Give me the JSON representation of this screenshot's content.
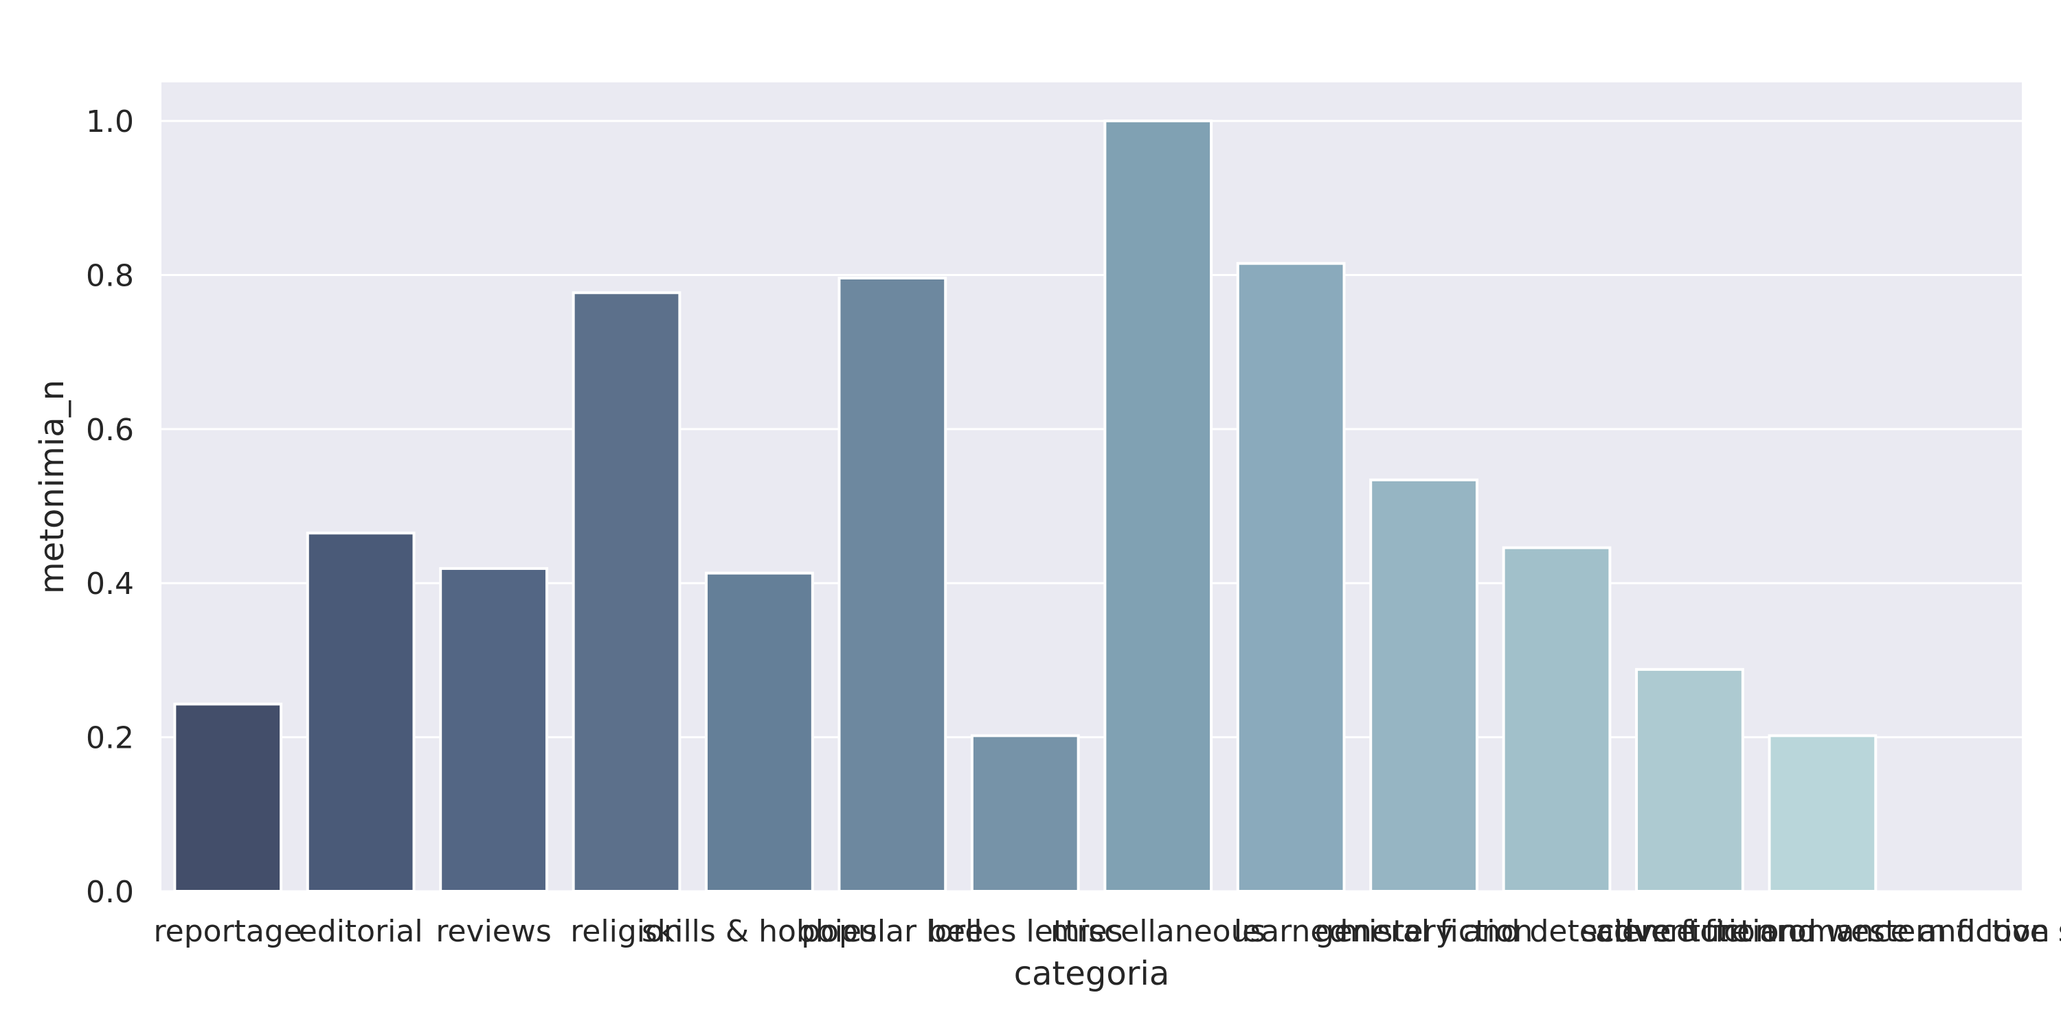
{
  "chart_data": {
    "type": "bar",
    "title": "",
    "xlabel": "categoria",
    "ylabel": "metonimia_n",
    "categories": [
      "reportage",
      "editorial",
      "reviews",
      "religion",
      "skills & hobbies",
      "popular lore",
      "belles lettres",
      "miscellaneous",
      "learned",
      "general fiction",
      "mistery and detective fiction",
      "science fiction",
      "adventure and western fiction",
      "romance and love story"
    ],
    "values": [
      0.243,
      0.465,
      0.419,
      0.777,
      0.413,
      0.796,
      0.202,
      1.0,
      0.815,
      0.534,
      0.446,
      0.288,
      0.202,
      0.0
    ],
    "colors": [
      "#434e6a",
      "#4a5a78",
      "#536684",
      "#5c708b",
      "#647f98",
      "#6d889f",
      "#7693a8",
      "#80a1b3",
      "#8aaabc",
      "#96b5c3",
      "#a1c0ca",
      "#adcad1",
      "#b9d6da",
      "#c6e0e4"
    ],
    "ylim": [
      0,
      1.05
    ],
    "yticks": [
      "0.0",
      "0.2",
      "0.4",
      "0.6",
      "0.8",
      "1.0"
    ],
    "ytick_values": [
      0,
      0.2,
      0.4,
      0.6,
      0.8,
      1.0
    ],
    "grid": true,
    "plot_background": "#eaeaf2",
    "grid_color": "#ffffff"
  }
}
